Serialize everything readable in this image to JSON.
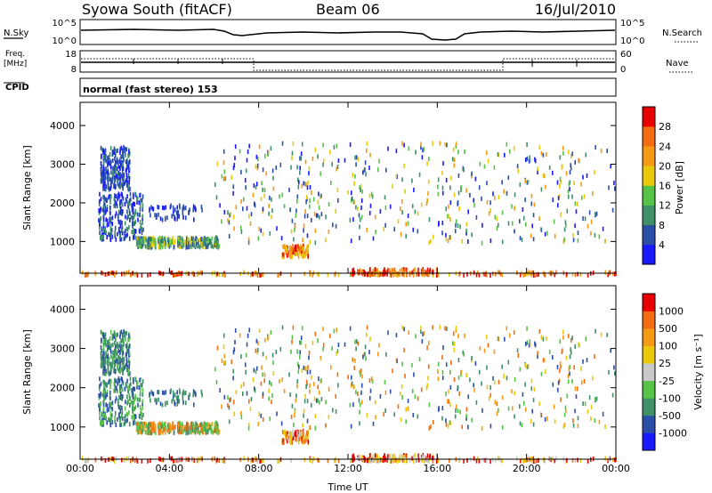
{
  "header": {
    "station": "Syowa South (fitACF)",
    "beam": "Beam 06",
    "date": "16/Jul/2010"
  },
  "top_panels": {
    "nsky_label": "N.Sky",
    "nsearch_label": "N.Search",
    "log_ticks": [
      "10^5",
      "10^0"
    ],
    "freq_label_1": "Freq.",
    "freq_label_2": "[MHz]",
    "freq_ticks": [
      "18",
      "8"
    ],
    "nave_label": "Nave",
    "nave_ticks": [
      "60",
      "0"
    ],
    "cpid_label": "CPID",
    "cpid_text": "normal (fast stereo) 153"
  },
  "colors": {
    "power": [
      "#1a1aff",
      "#2b4fa8",
      "#3f8f67",
      "#56c247",
      "#e9c90a",
      "#f59a13",
      "#f26d12",
      "#e80000"
    ],
    "velocity": [
      "#e80000",
      "#f26d12",
      "#f59a13",
      "#e9c90a",
      "#c9c9c9",
      "#56c247",
      "#3f8f67",
      "#2b4fa8",
      "#1a1aff"
    ]
  },
  "chart_data": [
    {
      "type": "heatmap",
      "xlabel": "",
      "ylabel": "Slant Range [km]",
      "y_ticks": [
        "1000",
        "2000",
        "3000",
        "4000"
      ],
      "ylim": [
        180,
        4600
      ],
      "xlim": [
        0,
        24
      ],
      "colorbar_label": "Power [dB]",
      "colorbar_ticks": [
        "4",
        "8",
        "12",
        "16",
        "20",
        "24",
        "28"
      ]
    },
    {
      "type": "heatmap",
      "xlabel": "Time UT",
      "ylabel": "Slant Range [km]",
      "x_ticks": [
        "00:00",
        "04:00",
        "08:00",
        "12:00",
        "16:00",
        "20:00",
        "00:00"
      ],
      "y_ticks": [
        "1000",
        "2000",
        "3000",
        "4000"
      ],
      "ylim": [
        180,
        4600
      ],
      "xlim": [
        0,
        24
      ],
      "colorbar_label": "Velocity [m s⁻¹]",
      "colorbar_ticks": [
        "1000",
        "500",
        "100",
        "25",
        "-25",
        "-100",
        "-500",
        "-1000"
      ]
    }
  ]
}
